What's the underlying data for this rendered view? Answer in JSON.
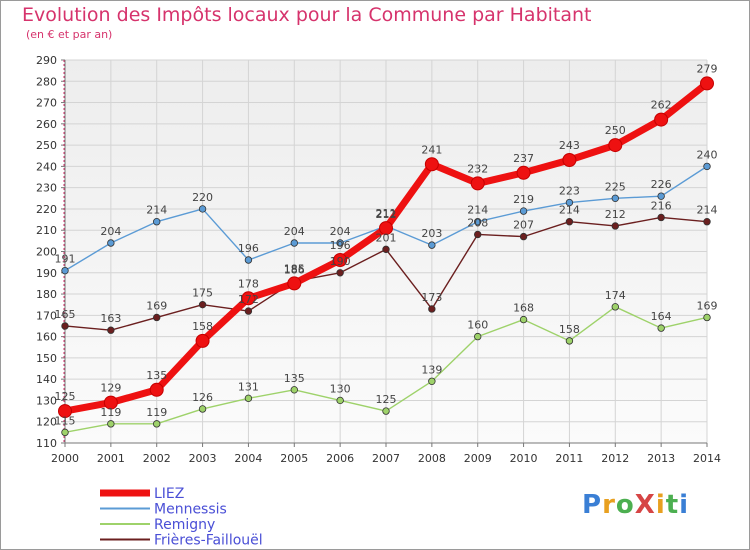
{
  "header": {
    "title": "Evolution des Impôts locaux pour la Commune par Habitant",
    "subtitle": "(en € et par an)"
  },
  "logo": {
    "text": "ProXiti",
    "letters": [
      "P",
      "r",
      "o",
      "X",
      "i",
      "t",
      "i"
    ],
    "colors": [
      "#3a7fd5",
      "#e8a020",
      "#4caf50",
      "#d64545",
      "#e8a020",
      "#4caf50",
      "#3a7fd5"
    ]
  },
  "chart_data": {
    "type": "line",
    "x": [
      "2000",
      "2001",
      "2002",
      "2003",
      "2004",
      "2005",
      "2006",
      "2007",
      "2008",
      "2009",
      "2010",
      "2011",
      "2012",
      "2013",
      "2014"
    ],
    "ylim": [
      110,
      290
    ],
    "yticks": [
      110,
      120,
      130,
      140,
      150,
      160,
      170,
      180,
      190,
      200,
      210,
      220,
      230,
      240,
      250,
      260,
      270,
      280,
      290
    ],
    "grid": true,
    "legend_position": "bottom-left",
    "series": [
      {
        "name": "Mennessis",
        "color": "#5b9bd5",
        "values": [
          191,
          204,
          214,
          220,
          196,
          204,
          204,
          212,
          203,
          214,
          219,
          223,
          225,
          226,
          240
        ]
      },
      {
        "name": "Remigny",
        "color": "#9ed26a",
        "values": [
          115,
          119,
          119,
          126,
          131,
          135,
          130,
          125,
          139,
          160,
          168,
          158,
          174,
          164,
          169
        ]
      },
      {
        "name": "Frières-Faillouël",
        "color": "#6b1f1f",
        "values": [
          165,
          163,
          169,
          175,
          172,
          186,
          190,
          201,
          173,
          208,
          207,
          214,
          212,
          216,
          214
        ]
      },
      {
        "name": "LIEZ",
        "color": "#ee1111",
        "values": [
          125,
          129,
          135,
          158,
          178,
          185,
          196,
          211,
          241,
          232,
          237,
          243,
          250,
          262,
          279
        ]
      }
    ]
  }
}
